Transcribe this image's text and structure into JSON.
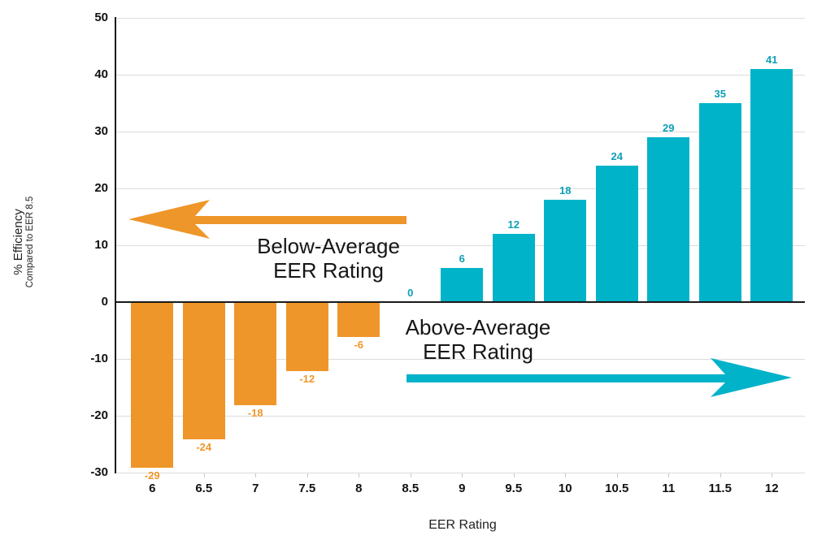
{
  "chart_data": {
    "type": "bar",
    "title": "",
    "xlabel": "EER Rating",
    "ylabel_line1": "% Efficiency",
    "ylabel_line2": "Compared to EER 8.5",
    "categories": [
      "6",
      "6.5",
      "7",
      "7.5",
      "8",
      "8.5",
      "9",
      "9.5",
      "10",
      "10.5",
      "11",
      "11.5",
      "12"
    ],
    "values": [
      -29,
      -24,
      -18,
      -12,
      -6,
      0,
      6,
      12,
      18,
      24,
      29,
      35,
      41
    ],
    "ylim": [
      -30,
      50
    ],
    "yticks": [
      50,
      40,
      30,
      20,
      10,
      0,
      -10,
      -20,
      -30
    ],
    "grid": true,
    "legend": "none",
    "colors": {
      "positive_bar": "#00B3C9",
      "negative_bar": "#EE9629",
      "positive_label": "#0E9FB5",
      "negative_label": "#EE9629",
      "axis": "#1A1A1A",
      "gridline": "#DCDCDC"
    },
    "annotations": [
      {
        "id": "below-average",
        "line1": "Below-Average",
        "line2": "EER Rating",
        "arrow_direction": "left",
        "arrow_color": "#EE9629"
      },
      {
        "id": "above-average",
        "line1": "Above-Average",
        "line2": "EER Rating",
        "arrow_direction": "right",
        "arrow_color": "#00B3C9"
      }
    ]
  }
}
